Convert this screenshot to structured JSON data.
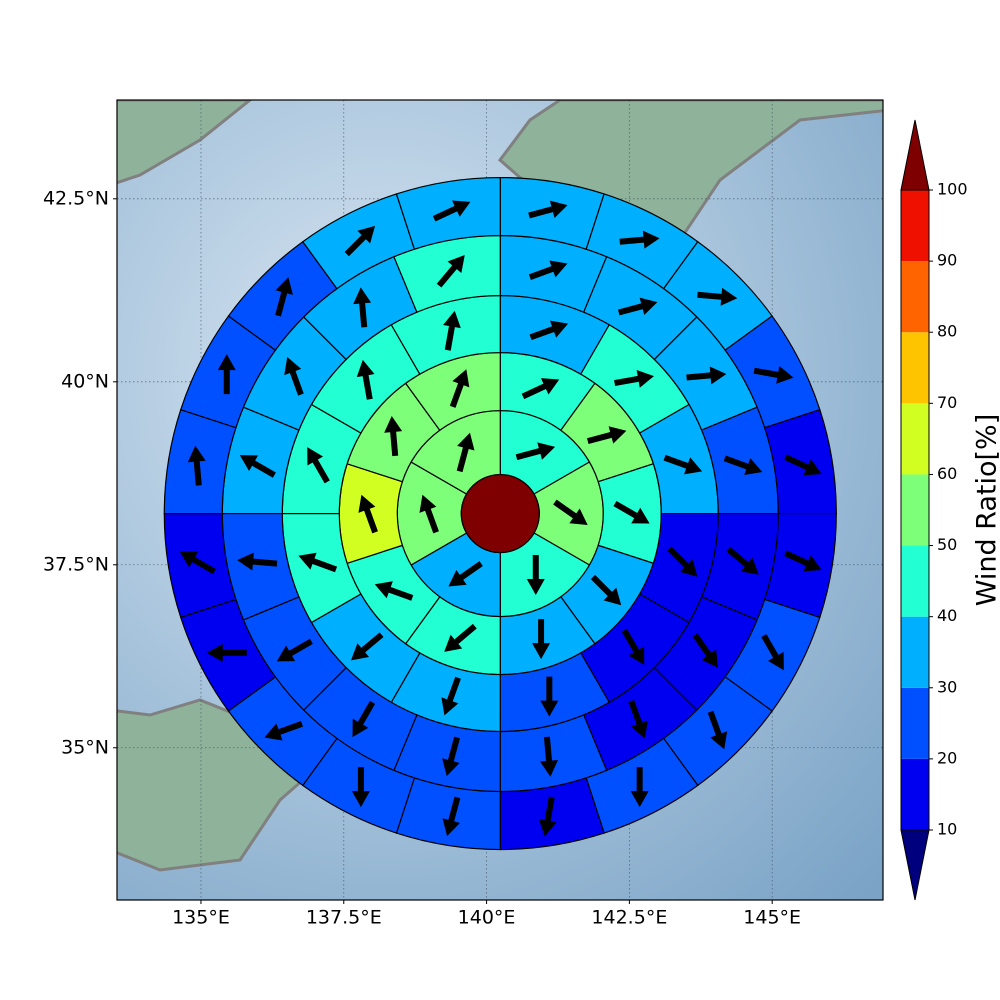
{
  "chart_data": {
    "type": "sectormap",
    "xlim": [
      133.53,
      146.94
    ],
    "ylim": [
      32.92,
      43.85
    ],
    "xticks": [
      {
        "value": 135,
        "label": "135°E"
      },
      {
        "value": 137.5,
        "label": "137.5°E"
      },
      {
        "value": 140,
        "label": "140°E"
      },
      {
        "value": 142.5,
        "label": "142.5°E"
      },
      {
        "value": 145,
        "label": "145°E"
      }
    ],
    "yticks": [
      {
        "value": 35,
        "label": "35°N"
      },
      {
        "value": 37.5,
        "label": "37.5°N"
      },
      {
        "value": 40,
        "label": "40°N"
      },
      {
        "value": 42.5,
        "label": "42.5°N"
      }
    ],
    "grid": true,
    "center": {
      "lon": 140.24,
      "lat": 38.2,
      "color": "#7f0000"
    },
    "rings": [
      {
        "values": [
          45,
          55,
          45,
          35,
          55,
          55
        ],
        "directions": [
          75,
          125,
          180,
          235,
          340,
          15
        ]
      },
      {
        "values": [
          45,
          55,
          45,
          35,
          35,
          45,
          45,
          65,
          55,
          55
        ],
        "directions": [
          65,
          75,
          120,
          135,
          180,
          230,
          290,
          340,
          355,
          20
        ]
      },
      {
        "values": [
          35,
          45,
          35,
          15,
          15,
          25,
          35,
          35,
          45,
          45,
          45,
          45
        ],
        "directions": [
          70,
          80,
          110,
          135,
          150,
          180,
          200,
          230,
          290,
          330,
          350,
          10
        ]
      },
      {
        "values": [
          35,
          35,
          35,
          25,
          15,
          15,
          15,
          25,
          25,
          25,
          25,
          25,
          35,
          35,
          35,
          45
        ],
        "directions": [
          70,
          75,
          85,
          110,
          130,
          145,
          160,
          175,
          195,
          210,
          240,
          275,
          300,
          340,
          355,
          40
        ]
      },
      {
        "values": [
          35,
          35,
          35,
          25,
          15,
          15,
          25,
          25,
          25,
          15,
          25,
          25,
          25,
          15,
          15,
          25,
          25,
          25,
          35,
          35
        ],
        "directions": [
          75,
          85,
          95,
          100,
          115,
          115,
          150,
          160,
          180,
          190,
          195,
          180,
          250,
          270,
          300,
          355,
          0,
          15,
          45,
          65
        ]
      }
    ],
    "colorbar": {
      "label": "Wind Ratio[%]",
      "levels": [
        10,
        20,
        30,
        40,
        50,
        60,
        70,
        80,
        90,
        100
      ],
      "colors": [
        "#0000f0",
        "#0050ff",
        "#00b0ff",
        "#22ffd2",
        "#7dff7a",
        "#d2ff22",
        "#ffc400",
        "#ff6400",
        "#f01000"
      ],
      "under_color": "#00007f",
      "over_color": "#7f0000"
    }
  }
}
